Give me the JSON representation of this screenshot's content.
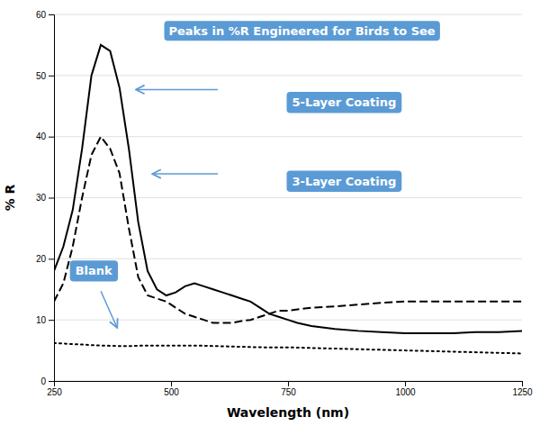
{
  "chart_data": {
    "type": "line",
    "x_label": "Wavelength (nm)",
    "y_label": "% R",
    "xlim": [
      250,
      1250
    ],
    "ylim": [
      0,
      60
    ],
    "xticks": [
      250,
      500,
      750,
      1000,
      1250
    ],
    "yticks": [
      0,
      10,
      20,
      30,
      40,
      50,
      60
    ],
    "grid": true,
    "series": [
      {
        "color": "#000000",
        "line_style": "solid",
        "x": [
          250,
          270,
          290,
          310,
          330,
          350,
          370,
          390,
          410,
          430,
          450,
          470,
          490,
          510,
          530,
          550,
          570,
          590,
          610,
          630,
          650,
          670,
          690,
          710,
          730,
          750,
          770,
          800,
          850,
          900,
          950,
          1000,
          1050,
          1100,
          1150,
          1200,
          1250
        ],
        "values": [
          18,
          22,
          28,
          38,
          50,
          55,
          54,
          48,
          38,
          26,
          18,
          15,
          14,
          14.5,
          15.5,
          16,
          15.5,
          15,
          14.5,
          14,
          13.5,
          13,
          12,
          11,
          10.5,
          10,
          9.5,
          9,
          8.5,
          8.2,
          8,
          7.8,
          7.8,
          7.8,
          8,
          8,
          8.2
        ]
      },
      {
        "color": "#000000",
        "line_style": "dashed",
        "x": [
          250,
          270,
          290,
          310,
          330,
          350,
          370,
          390,
          410,
          430,
          450,
          470,
          490,
          510,
          530,
          550,
          570,
          590,
          610,
          630,
          650,
          670,
          690,
          710,
          730,
          750,
          800,
          850,
          900,
          950,
          1000,
          1050,
          1100,
          1150,
          1200,
          1250
        ],
        "values": [
          13,
          16,
          22,
          30,
          37,
          40,
          38,
          34,
          25,
          17,
          14,
          13.5,
          13,
          12,
          11,
          10.5,
          10,
          9.5,
          9.5,
          9.5,
          9.8,
          10,
          10.5,
          11,
          11.5,
          11.5,
          12,
          12.2,
          12.5,
          12.8,
          13,
          13,
          13,
          13,
          13,
          13
        ]
      },
      {
        "color": "#000000",
        "line_style": "dotted",
        "x": [
          250,
          300,
          350,
          400,
          450,
          500,
          550,
          600,
          650,
          700,
          750,
          800,
          900,
          1000,
          1100,
          1200,
          1250
        ],
        "values": [
          6.2,
          6.0,
          5.8,
          5.7,
          5.8,
          5.8,
          5.8,
          5.7,
          5.6,
          5.5,
          5.5,
          5.4,
          5.2,
          5.0,
          4.8,
          4.6,
          4.5
        ]
      }
    ],
    "annotations": [
      {
        "text": "Peaks in %R Engineered for Birds to See",
        "color": "#5b9bd5"
      },
      {
        "text": "5-Layer Coating",
        "color": "#5b9bd5"
      },
      {
        "text": "3-Layer Coating",
        "color": "#5b9bd5"
      },
      {
        "text": "Blank",
        "color": "#5b9bd5"
      }
    ]
  }
}
